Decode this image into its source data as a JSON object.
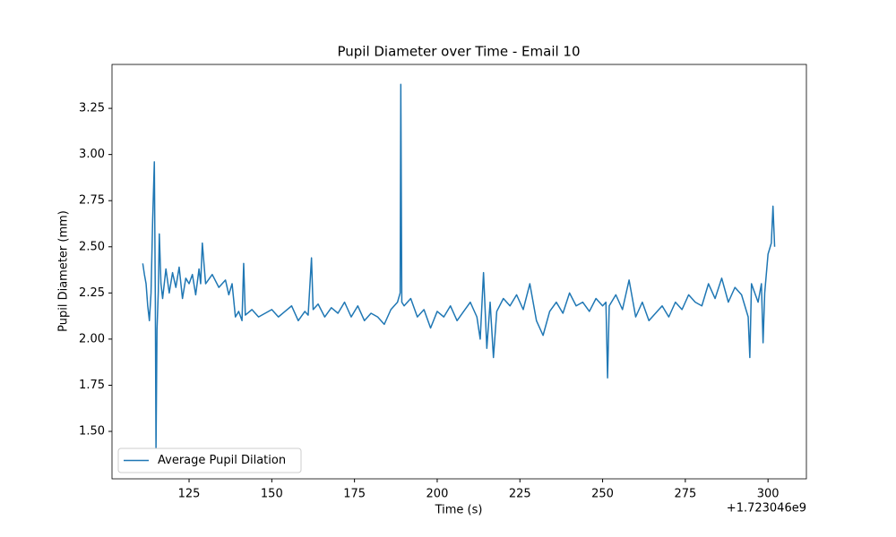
{
  "chart_data": {
    "type": "line",
    "title": "Pupil Diameter over Time - Email 10",
    "x_label": "Time (s)",
    "y_label": "Pupil Diameter (mm)",
    "x_offset_label": "+1.723046e9",
    "legend": "lower left",
    "grid": false,
    "xlim": [
      101.7,
      311.6
    ],
    "ylim": [
      1.243,
      3.488
    ],
    "xticks": [
      125,
      150,
      175,
      200,
      225,
      250,
      275,
      300
    ],
    "yticks": [
      {
        "value": 1.5,
        "label": "1.50"
      },
      1.75,
      {
        "value": 2.0,
        "label": "2.00"
      },
      2.25,
      {
        "value": 2.5,
        "label": "2.50"
      },
      2.75,
      {
        "value": 3.0,
        "label": "3.00"
      },
      3.25
    ],
    "x": [
      111,
      111.5,
      112,
      112.5,
      113,
      113.5,
      114,
      114.5,
      114.8,
      115,
      115.3,
      115.7,
      116,
      116.5,
      117,
      118,
      119,
      120,
      121,
      122,
      123,
      124,
      125,
      126,
      127,
      128,
      128.5,
      129,
      130,
      132,
      134,
      136,
      137,
      138,
      139,
      140,
      141,
      141.5,
      142,
      144,
      146,
      148,
      150,
      152,
      154,
      156,
      158,
      160,
      161,
      162,
      162.5,
      164,
      166,
      168,
      170,
      172,
      174,
      176,
      178,
      180,
      182,
      184,
      186,
      188,
      188.8,
      189,
      189.3,
      190,
      192,
      194,
      196,
      198,
      200,
      202,
      204,
      206,
      208,
      210,
      212,
      213,
      214,
      215,
      216,
      217,
      218,
      220,
      222,
      224,
      226,
      228,
      230,
      232,
      234,
      236,
      238,
      240,
      242,
      244,
      246,
      248,
      250,
      251,
      251.5,
      252,
      254,
      256,
      258,
      260,
      262,
      264,
      266,
      268,
      270,
      272,
      274,
      276,
      278,
      280,
      282,
      284,
      286,
      288,
      290,
      292,
      294,
      294.5,
      295,
      296,
      297,
      298,
      298.5,
      299,
      300,
      301,
      301.5,
      302
    ],
    "series": [
      {
        "name": "Average Pupil Dilation",
        "color": "#1f77b4",
        "values": [
          2.41,
          2.35,
          2.3,
          2.18,
          2.1,
          2.25,
          2.65,
          2.96,
          2.2,
          1.4,
          2.05,
          2.26,
          2.57,
          2.3,
          2.22,
          2.38,
          2.25,
          2.36,
          2.28,
          2.39,
          2.22,
          2.33,
          2.3,
          2.35,
          2.24,
          2.38,
          2.3,
          2.52,
          2.3,
          2.35,
          2.28,
          2.32,
          2.24,
          2.3,
          2.12,
          2.15,
          2.1,
          2.41,
          2.13,
          2.16,
          2.12,
          2.14,
          2.16,
          2.12,
          2.15,
          2.18,
          2.1,
          2.15,
          2.13,
          2.44,
          2.16,
          2.19,
          2.12,
          2.17,
          2.14,
          2.2,
          2.12,
          2.18,
          2.1,
          2.14,
          2.12,
          2.08,
          2.16,
          2.2,
          2.25,
          3.38,
          2.2,
          2.18,
          2.22,
          2.12,
          2.16,
          2.06,
          2.15,
          2.12,
          2.18,
          2.1,
          2.15,
          2.2,
          2.12,
          2.0,
          2.36,
          1.95,
          2.2,
          1.9,
          2.15,
          2.22,
          2.18,
          2.24,
          2.16,
          2.3,
          2.1,
          2.02,
          2.15,
          2.2,
          2.14,
          2.25,
          2.18,
          2.2,
          2.15,
          2.22,
          2.18,
          2.2,
          1.79,
          2.18,
          2.24,
          2.16,
          2.32,
          2.12,
          2.2,
          2.1,
          2.14,
          2.18,
          2.12,
          2.2,
          2.16,
          2.24,
          2.2,
          2.18,
          2.3,
          2.22,
          2.33,
          2.2,
          2.28,
          2.24,
          2.12,
          1.9,
          2.3,
          2.25,
          2.2,
          2.3,
          1.98,
          2.25,
          2.46,
          2.52,
          2.72,
          2.5
        ]
      }
    ]
  }
}
